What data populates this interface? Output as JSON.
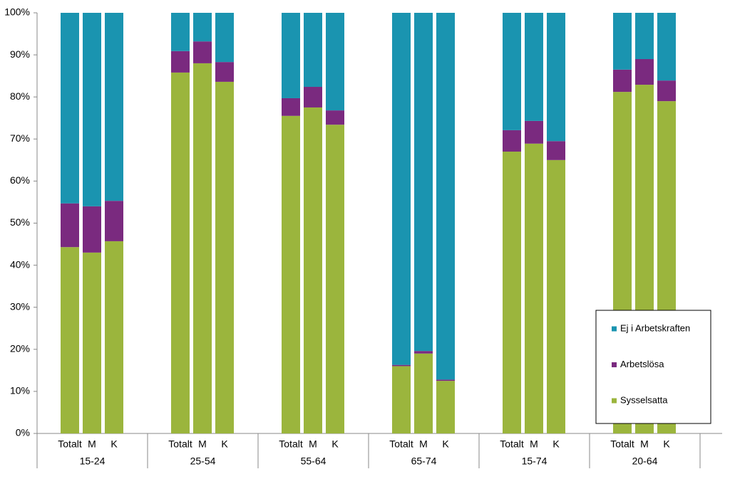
{
  "chart_data": {
    "type": "stacked_bar",
    "groups": [
      "15-24",
      "25-54",
      "55-64",
      "65-74",
      "15-74",
      "20-64"
    ],
    "categories": [
      "Totalt",
      "M",
      "K",
      "Totalt",
      "M",
      "K",
      "Totalt",
      "M",
      "K",
      "Totalt",
      "M",
      "K",
      "Totalt",
      "M",
      "K",
      "Totalt",
      "M",
      "K"
    ],
    "series": [
      {
        "name": "Sysselsatta",
        "color": "#9bb53d",
        "values": [
          44.3,
          43.0,
          45.7,
          85.8,
          88.0,
          83.6,
          75.5,
          77.5,
          73.4,
          16.0,
          19.0,
          12.5,
          67.0,
          68.9,
          65.0,
          81.2,
          82.9,
          79.0
        ]
      },
      {
        "name": "Arbetslösa",
        "color": "#7a2a7f",
        "values": [
          10.4,
          11.0,
          9.6,
          5.1,
          5.2,
          4.7,
          4.2,
          4.9,
          3.4,
          0.3,
          0.6,
          0.3,
          5.1,
          5.4,
          4.5,
          5.3,
          6.1,
          4.9
        ]
      },
      {
        "name": "Ej i Arbetskraften",
        "color": "#1a94b0",
        "values": [
          45.3,
          46.0,
          44.7,
          9.1,
          6.8,
          11.7,
          20.3,
          17.6,
          23.2,
          83.7,
          80.4,
          87.2,
          27.9,
          25.7,
          30.5,
          13.5,
          11.0,
          16.1
        ]
      }
    ],
    "ylim": [
      0,
      100
    ],
    "yticks": [
      {
        "value": 0,
        "label": "0%"
      },
      {
        "value": 10,
        "label": "10%"
      },
      {
        "value": 20,
        "label": "20%"
      },
      {
        "value": 30,
        "label": "30%"
      },
      {
        "value": 40,
        "label": "40%"
      },
      {
        "value": 50,
        "label": "50%"
      },
      {
        "value": 60,
        "label": "60%"
      },
      {
        "value": 70,
        "label": "70%"
      },
      {
        "value": 80,
        "label": "80%"
      },
      {
        "value": 90,
        "label": "90%"
      },
      {
        "value": 100,
        "label": "100%"
      }
    ],
    "grid": false,
    "legend": "lower right"
  }
}
